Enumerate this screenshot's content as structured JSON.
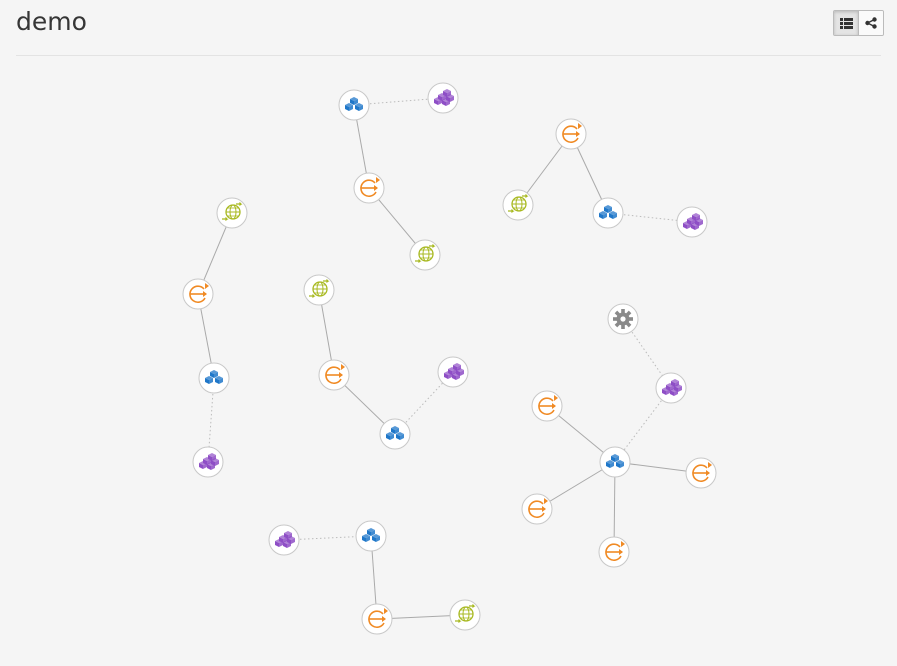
{
  "header": {
    "title": "demo"
  },
  "view_toggle": {
    "list_icon": "list-icon",
    "topology_icon": "share-icon",
    "active": "topology"
  },
  "colors": {
    "app": "#1f77c9",
    "datastore": "#8e4ec6",
    "replicator": "#f08a24",
    "network": "#a8b920",
    "gear": "#8a8a8a"
  },
  "topology": {
    "nodes": [
      {
        "id": "a1",
        "type": "app",
        "icon": "boxes-icon"
      },
      {
        "id": "a2",
        "type": "datastore",
        "icon": "stacked-boxes-icon"
      },
      {
        "id": "a3",
        "type": "replicator",
        "icon": "sync-arrow-icon"
      },
      {
        "id": "a4",
        "type": "network",
        "icon": "globe-arrows-icon"
      },
      {
        "id": "b1",
        "type": "replicator",
        "icon": "sync-arrow-icon"
      },
      {
        "id": "b2",
        "type": "network",
        "icon": "globe-arrows-icon"
      },
      {
        "id": "b3",
        "type": "app",
        "icon": "boxes-icon"
      },
      {
        "id": "b4",
        "type": "datastore",
        "icon": "stacked-boxes-icon"
      },
      {
        "id": "c1",
        "type": "network",
        "icon": "globe-arrows-icon"
      },
      {
        "id": "c2",
        "type": "replicator",
        "icon": "sync-arrow-icon"
      },
      {
        "id": "c3",
        "type": "app",
        "icon": "boxes-icon"
      },
      {
        "id": "c4",
        "type": "datastore",
        "icon": "stacked-boxes-icon"
      },
      {
        "id": "d1",
        "type": "network",
        "icon": "globe-arrows-icon"
      },
      {
        "id": "d2",
        "type": "replicator",
        "icon": "sync-arrow-icon"
      },
      {
        "id": "d3",
        "type": "app",
        "icon": "boxes-icon"
      },
      {
        "id": "d4",
        "type": "datastore",
        "icon": "stacked-boxes-icon"
      },
      {
        "id": "e1",
        "type": "gear",
        "icon": "gear-icon"
      },
      {
        "id": "e2",
        "type": "datastore",
        "icon": "stacked-boxes-icon"
      },
      {
        "id": "e3",
        "type": "app",
        "icon": "boxes-icon"
      },
      {
        "id": "e4",
        "type": "replicator",
        "icon": "sync-arrow-icon"
      },
      {
        "id": "e5",
        "type": "replicator",
        "icon": "sync-arrow-icon"
      },
      {
        "id": "e6",
        "type": "replicator",
        "icon": "sync-arrow-icon"
      },
      {
        "id": "e7",
        "type": "replicator",
        "icon": "sync-arrow-icon"
      },
      {
        "id": "f1",
        "type": "datastore",
        "icon": "stacked-boxes-icon"
      },
      {
        "id": "f2",
        "type": "app",
        "icon": "boxes-icon"
      },
      {
        "id": "f3",
        "type": "replicator",
        "icon": "sync-arrow-icon"
      },
      {
        "id": "f4",
        "type": "network",
        "icon": "globe-arrows-icon"
      }
    ],
    "links": [
      {
        "source": "a1",
        "target": "a2",
        "style": "dotted"
      },
      {
        "source": "a1",
        "target": "a3",
        "style": "solid"
      },
      {
        "source": "a3",
        "target": "a4",
        "style": "solid"
      },
      {
        "source": "b1",
        "target": "b2",
        "style": "solid"
      },
      {
        "source": "b1",
        "target": "b3",
        "style": "solid"
      },
      {
        "source": "b3",
        "target": "b4",
        "style": "dotted"
      },
      {
        "source": "c1",
        "target": "c2",
        "style": "solid"
      },
      {
        "source": "c2",
        "target": "c3",
        "style": "solid"
      },
      {
        "source": "c3",
        "target": "c4",
        "style": "dotted"
      },
      {
        "source": "d1",
        "target": "d2",
        "style": "solid"
      },
      {
        "source": "d2",
        "target": "d3",
        "style": "solid"
      },
      {
        "source": "d3",
        "target": "d4",
        "style": "dotted"
      },
      {
        "source": "e1",
        "target": "e2",
        "style": "dotted"
      },
      {
        "source": "e2",
        "target": "e3",
        "style": "dotted"
      },
      {
        "source": "e3",
        "target": "e4",
        "style": "solid"
      },
      {
        "source": "e3",
        "target": "e5",
        "style": "solid"
      },
      {
        "source": "e3",
        "target": "e6",
        "style": "solid"
      },
      {
        "source": "e3",
        "target": "e7",
        "style": "solid"
      },
      {
        "source": "f1",
        "target": "f2",
        "style": "dotted"
      },
      {
        "source": "f2",
        "target": "f3",
        "style": "solid"
      },
      {
        "source": "f3",
        "target": "f4",
        "style": "solid"
      }
    ]
  }
}
